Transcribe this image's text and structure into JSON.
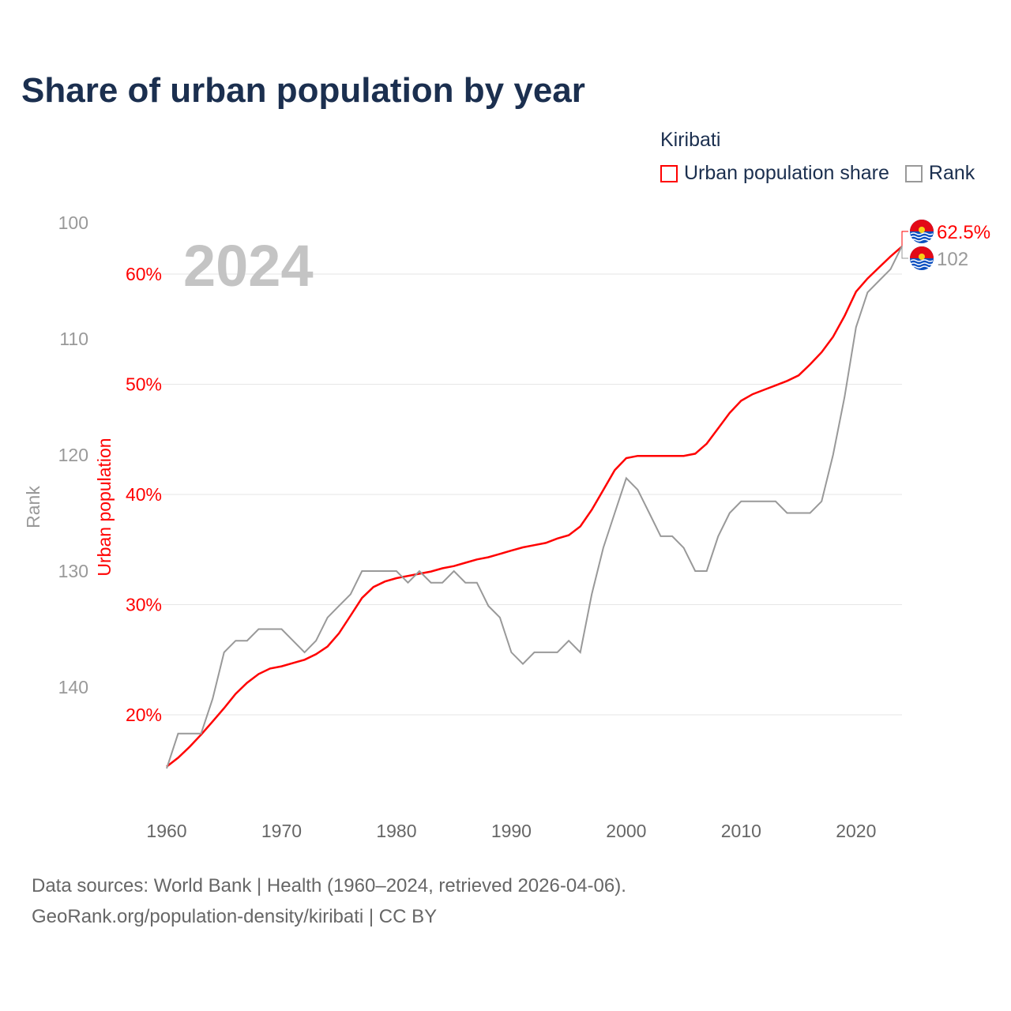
{
  "title": "Share of urban population by year",
  "legend": {
    "title": "Kiribati",
    "items": [
      {
        "label": "Urban population share",
        "color": "#ff0000"
      },
      {
        "label": "Rank",
        "color": "#999999"
      }
    ]
  },
  "footer": {
    "line1": "Data sources: World Bank | Health (1960–2024, retrieved 2026-04-06).",
    "line2": "GeoRank.org/population-density/kiribati | CC BY"
  },
  "chart_data": {
    "type": "line",
    "title": "Share of urban population by year",
    "year_label": "2024",
    "xlabel": "",
    "ylabel": "Urban population",
    "y2label": "Rank",
    "xlim": [
      1960,
      2024
    ],
    "ylim": [
      10,
      65
    ],
    "y2lim": [
      151.5,
      98.3
    ],
    "xticks": [
      1960,
      1970,
      1980,
      1990,
      2000,
      2010,
      2020
    ],
    "yticks": [
      20,
      30,
      40,
      50,
      60
    ],
    "ytick_labels": [
      "20%",
      "30%",
      "40%",
      "50%",
      "60%"
    ],
    "y2ticks": [
      100,
      110,
      120,
      130,
      140
    ],
    "x": [
      1960,
      1961,
      1962,
      1963,
      1964,
      1965,
      1966,
      1967,
      1968,
      1969,
      1970,
      1971,
      1972,
      1973,
      1974,
      1975,
      1976,
      1977,
      1978,
      1979,
      1980,
      1981,
      1982,
      1983,
      1984,
      1985,
      1986,
      1987,
      1988,
      1989,
      1990,
      1991,
      1992,
      1993,
      1994,
      1995,
      1996,
      1997,
      1998,
      1999,
      2000,
      2001,
      2002,
      2003,
      2004,
      2005,
      2006,
      2007,
      2008,
      2009,
      2010,
      2011,
      2012,
      2013,
      2014,
      2015,
      2016,
      2017,
      2018,
      2019,
      2020,
      2021,
      2022,
      2023,
      2024
    ],
    "series": [
      {
        "name": "Urban population share",
        "axis": "left",
        "color": "#ff0000",
        "end_label": "62.5%",
        "values": [
          15.3,
          16.1,
          17.1,
          18.2,
          19.4,
          20.6,
          21.9,
          22.9,
          23.7,
          24.2,
          24.4,
          24.7,
          25.0,
          25.5,
          26.2,
          27.4,
          29.0,
          30.6,
          31.6,
          32.1,
          32.4,
          32.6,
          32.8,
          33.0,
          33.3,
          33.5,
          33.8,
          34.1,
          34.3,
          34.6,
          34.9,
          35.2,
          35.4,
          35.6,
          36.0,
          36.3,
          37.1,
          38.6,
          40.4,
          42.2,
          43.3,
          43.5,
          43.5,
          43.5,
          43.5,
          43.5,
          43.7,
          44.6,
          46.0,
          47.4,
          48.5,
          49.1,
          49.5,
          49.9,
          50.3,
          50.8,
          51.8,
          52.9,
          54.3,
          56.2,
          58.4,
          59.6,
          60.6,
          61.6,
          62.5
        ]
      },
      {
        "name": "Rank",
        "axis": "right",
        "color": "#999999",
        "end_label": "102",
        "values": [
          147,
          144,
          144,
          144,
          141,
          137,
          136,
          136,
          135,
          135,
          135,
          136,
          137,
          136,
          134,
          133,
          132,
          130,
          130,
          130,
          130,
          131,
          130,
          131,
          131,
          130,
          131,
          131,
          133,
          134,
          137,
          138,
          137,
          137,
          137,
          136,
          137,
          132,
          128,
          125,
          122,
          123,
          125,
          127,
          127,
          128,
          130,
          130,
          127,
          125,
          124,
          124,
          124,
          124,
          125,
          125,
          125,
          124,
          120,
          115,
          109,
          106,
          105,
          104,
          102
        ]
      }
    ]
  }
}
